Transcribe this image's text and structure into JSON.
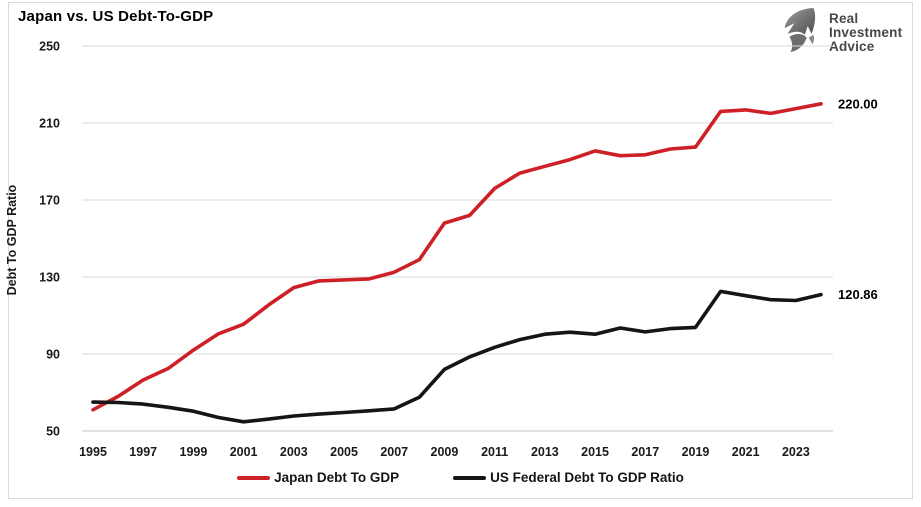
{
  "header": {
    "title": "Japan vs. US Debt-To-GDP"
  },
  "logo": {
    "line1": "Real",
    "line2": "Investment",
    "line3": "Advice"
  },
  "chart_data": {
    "type": "line",
    "title": "Japan vs. US Debt-To-GDP",
    "xlabel": "",
    "ylabel": "Debt To GDP Ratio",
    "xlim": [
      1995,
      2024
    ],
    "ylim": [
      50,
      250
    ],
    "x_ticks": [
      1995,
      1997,
      1999,
      2001,
      2003,
      2005,
      2007,
      2009,
      2011,
      2013,
      2015,
      2017,
      2019,
      2021,
      2023
    ],
    "y_ticks": [
      50,
      90,
      130,
      170,
      210,
      250
    ],
    "grid": "horizontal",
    "legend_position": "bottom",
    "x": [
      1995,
      1996,
      1997,
      1998,
      1999,
      2000,
      2001,
      2002,
      2003,
      2004,
      2005,
      2006,
      2007,
      2008,
      2009,
      2010,
      2011,
      2012,
      2013,
      2014,
      2015,
      2016,
      2017,
      2018,
      2019,
      2020,
      2021,
      2022,
      2023,
      2024
    ],
    "series": [
      {
        "name": "Japan Debt To GDP",
        "color": "#ce2127",
        "end_label": "220.00",
        "values": [
          61,
          68,
          76.5,
          82.5,
          92,
          100.5,
          105.5,
          115.5,
          124.5,
          128,
          128.5,
          129,
          132.5,
          139,
          158,
          162,
          176,
          184,
          187.5,
          191,
          195.5,
          193,
          193.5,
          196.5,
          197.5,
          216,
          216.8,
          215,
          217.5,
          220
        ]
      },
      {
        "name": "US Federal Debt To GDP Ratio",
        "color": "#151515",
        "end_label": "120.86",
        "values": [
          65,
          64.8,
          64,
          62.3,
          60.3,
          57,
          54.8,
          56.2,
          57.8,
          58.8,
          59.6,
          60.5,
          61.5,
          67.5,
          82,
          88.5,
          93.5,
          97.5,
          100.3,
          101.3,
          100.3,
          103.5,
          101.5,
          103.2,
          103.8,
          122.5,
          120.3,
          118.2,
          117.8,
          120.86
        ]
      }
    ],
    "colors": {
      "gridline": "#d9d9d9",
      "axis_text": "#1a1a1a"
    }
  }
}
